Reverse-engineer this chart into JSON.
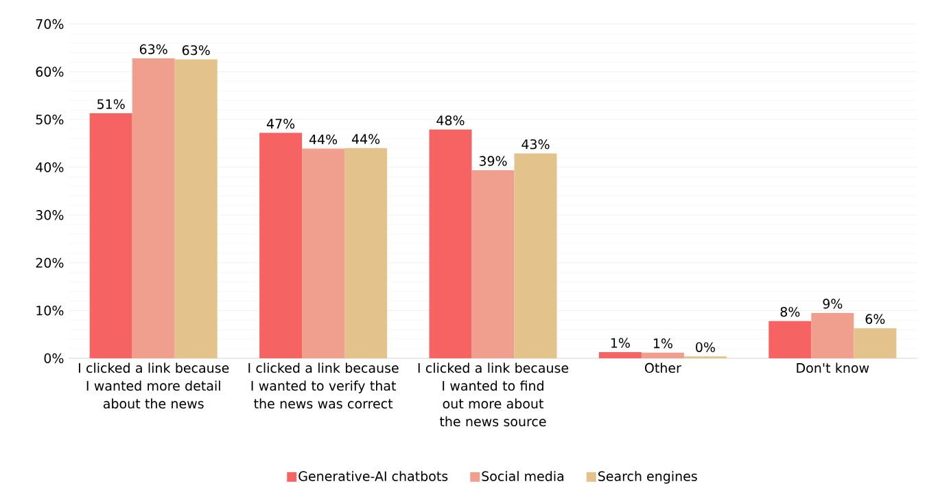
{
  "chart_data": {
    "type": "bar",
    "categories": [
      "I clicked a link because I wanted more detail about the news",
      "I clicked a link because I wanted to verify that the news was correct",
      "I clicked a link because I wanted to find out more about the news source",
      "Other",
      "Don't know"
    ],
    "series": [
      {
        "name": "Generative-AI chatbots",
        "color": "#f56462",
        "values": [
          51.3,
          47.2,
          47.9,
          1.3,
          7.8
        ],
        "value_labels": [
          "51%",
          "47%",
          "48%",
          "1%",
          "8%"
        ]
      },
      {
        "name": "Social media",
        "color": "#f09f8e",
        "values": [
          62.8,
          43.9,
          39.4,
          1.2,
          9.5
        ],
        "value_labels": [
          "63%",
          "44%",
          "39%",
          "1%",
          "9%"
        ]
      },
      {
        "name": "Search engines",
        "color": "#e3c28b",
        "values": [
          62.6,
          44.0,
          42.9,
          0.4,
          6.3
        ],
        "value_labels": [
          "63%",
          "44%",
          "43%",
          "0%",
          "6%"
        ]
      }
    ],
    "ylim": [
      0,
      70
    ],
    "yticks": [
      {
        "value": 0,
        "label": "0%"
      },
      {
        "value": 10,
        "label": "10%"
      },
      {
        "value": 20,
        "label": "20%"
      },
      {
        "value": 30,
        "label": "30%"
      },
      {
        "value": 40,
        "label": "40%"
      },
      {
        "value": 50,
        "label": "50%"
      },
      {
        "value": 60,
        "label": "60%"
      },
      {
        "value": 70,
        "label": "70%"
      }
    ],
    "grid": "y",
    "legend": "bottom"
  }
}
